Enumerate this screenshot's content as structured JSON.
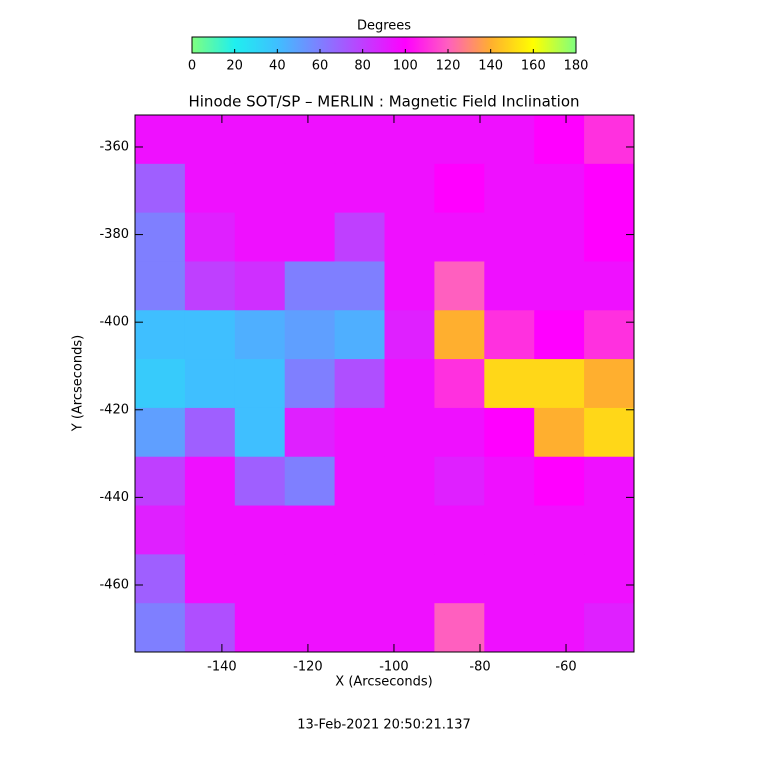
{
  "chart_data": {
    "type": "heatmap",
    "title": "Hinode SOT/SP – MERLIN : Magnetic Field Inclination",
    "xlabel": "X (Arcseconds)",
    "ylabel": "Y (Arcseconds)",
    "footer": "13-Feb-2021 20:50:21.137",
    "xlim": [
      -160.2,
      -44.2
    ],
    "ylim": [
      -475.3,
      -352.7
    ],
    "xticks": [
      -140,
      -120,
      -100,
      -80,
      -60
    ],
    "yticks": [
      -360,
      -380,
      -400,
      -420,
      -440,
      -460
    ],
    "colorbar": {
      "label": "Degrees",
      "lim": [
        0,
        180
      ],
      "ticks": [
        0,
        20,
        40,
        60,
        80,
        100,
        120,
        140,
        160,
        180
      ],
      "colors": [
        "#7fff7f",
        "#1fefef",
        "#3fbfff",
        "#7f7fff",
        "#bf3fff",
        "#ff00ff",
        "#ff5fbf",
        "#ffaf2f",
        "#ffff00",
        "#7fff7f"
      ]
    },
    "z": [
      [
        95,
        95,
        95,
        95,
        95,
        95,
        95,
        95,
        100,
        110
      ],
      [
        70,
        95,
        95,
        95,
        95,
        95,
        100,
        95,
        95,
        100
      ],
      [
        60,
        90,
        95,
        95,
        80,
        95,
        95,
        95,
        95,
        100
      ],
      [
        60,
        80,
        85,
        60,
        60,
        95,
        120,
        95,
        95,
        95
      ],
      [
        40,
        40,
        45,
        50,
        45,
        90,
        140,
        110,
        100,
        110
      ],
      [
        35,
        40,
        40,
        60,
        75,
        95,
        110,
        150,
        150,
        140
      ],
      [
        50,
        70,
        40,
        90,
        95,
        95,
        95,
        100,
        140,
        150
      ],
      [
        80,
        95,
        70,
        60,
        95,
        95,
        90,
        95,
        100,
        95
      ],
      [
        90,
        95,
        95,
        95,
        95,
        95,
        95,
        95,
        95,
        95
      ],
      [
        70,
        95,
        95,
        95,
        95,
        95,
        95,
        95,
        95,
        95
      ],
      [
        60,
        75,
        95,
        95,
        95,
        95,
        120,
        95,
        95,
        90
      ]
    ]
  }
}
